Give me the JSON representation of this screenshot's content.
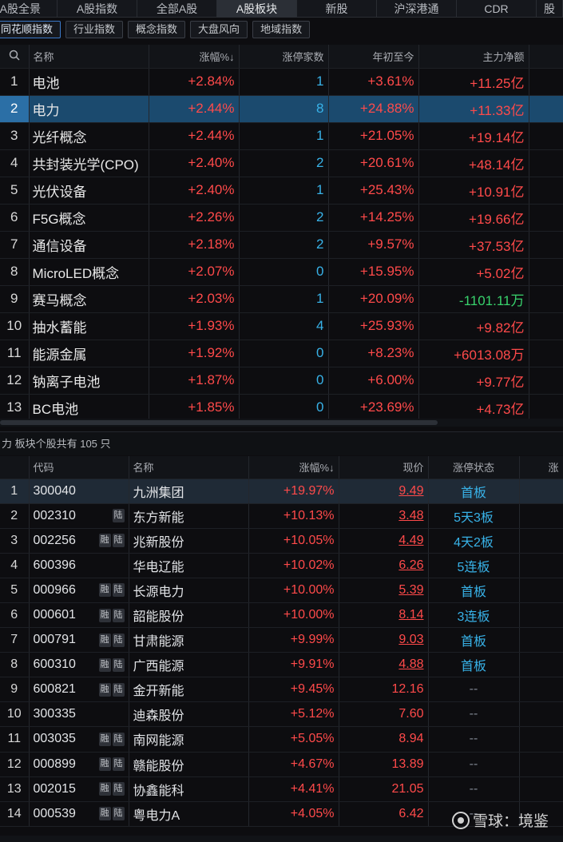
{
  "tabs": [
    "A股全景",
    "A股指数",
    "全部A股",
    "A股板块",
    "新股",
    "沪深港通",
    "CDR",
    "股"
  ],
  "active_tab": 3,
  "sub_indexes": [
    "同花顺指数",
    "行业指数",
    "概念指数",
    "大盘风向",
    "地域指数"
  ],
  "sector_table": {
    "headers": [
      "名称",
      "涨幅%↓",
      "涨停家数",
      "年初至今",
      "主力净额"
    ],
    "rows": [
      {
        "idx": "1",
        "name": "电池",
        "chg": "+2.84%",
        "limit": "1",
        "ytd": "+3.61%",
        "net": "+11.25亿"
      },
      {
        "idx": "2",
        "name": "电力",
        "chg": "+2.44%",
        "limit": "8",
        "ytd": "+24.88%",
        "net": "+11.33亿"
      },
      {
        "idx": "3",
        "name": "光纤概念",
        "chg": "+2.44%",
        "limit": "1",
        "ytd": "+21.05%",
        "net": "+19.14亿"
      },
      {
        "idx": "4",
        "name": "共封装光学(CPO)",
        "chg": "+2.40%",
        "limit": "2",
        "ytd": "+20.61%",
        "net": "+48.14亿"
      },
      {
        "idx": "5",
        "name": "光伏设备",
        "chg": "+2.40%",
        "limit": "1",
        "ytd": "+25.43%",
        "net": "+10.91亿"
      },
      {
        "idx": "6",
        "name": "F5G概念",
        "chg": "+2.26%",
        "limit": "2",
        "ytd": "+14.25%",
        "net": "+19.66亿"
      },
      {
        "idx": "7",
        "name": "通信设备",
        "chg": "+2.18%",
        "limit": "2",
        "ytd": "+9.57%",
        "net": "+37.53亿"
      },
      {
        "idx": "8",
        "name": "MicroLED概念",
        "chg": "+2.07%",
        "limit": "0",
        "ytd": "+15.95%",
        "net": "+5.02亿"
      },
      {
        "idx": "9",
        "name": "赛马概念",
        "chg": "+2.03%",
        "limit": "1",
        "ytd": "+20.09%",
        "net": "-1101.11万"
      },
      {
        "idx": "10",
        "name": "抽水蓄能",
        "chg": "+1.93%",
        "limit": "4",
        "ytd": "+25.93%",
        "net": "+9.82亿"
      },
      {
        "idx": "11",
        "name": "能源金属",
        "chg": "+1.92%",
        "limit": "0",
        "ytd": "+8.23%",
        "net": "+6013.08万"
      },
      {
        "idx": "12",
        "name": "钠离子电池",
        "chg": "+1.87%",
        "limit": "0",
        "ytd": "+6.00%",
        "net": "+9.77亿"
      },
      {
        "idx": "13",
        "name": "BC电池",
        "chg": "+1.85%",
        "limit": "0",
        "ytd": "+23.69%",
        "net": "+4.73亿"
      }
    ]
  },
  "section_title": "力 板块个股共有 105 只",
  "stock_table": {
    "headers": [
      "代码",
      "名称",
      "涨幅%↓",
      "现价",
      "涨停状态",
      "涨"
    ],
    "rows": [
      {
        "idx": "1",
        "code": "300040",
        "badges": [],
        "name": "九洲集团",
        "chg": "+19.97%",
        "price": "9.49",
        "status": "首板"
      },
      {
        "idx": "2",
        "code": "002310",
        "badges": [
          "陆"
        ],
        "name": "东方新能",
        "chg": "+10.13%",
        "price": "3.48",
        "status": "5天3板"
      },
      {
        "idx": "3",
        "code": "002256",
        "badges": [
          "融",
          "陆"
        ],
        "name": "兆新股份",
        "chg": "+10.05%",
        "price": "4.49",
        "status": "4天2板"
      },
      {
        "idx": "4",
        "code": "600396",
        "badges": [],
        "name": "华电辽能",
        "chg": "+10.02%",
        "price": "6.26",
        "status": "5连板"
      },
      {
        "idx": "5",
        "code": "000966",
        "badges": [
          "融",
          "陆"
        ],
        "name": "长源电力",
        "chg": "+10.00%",
        "price": "5.39",
        "status": "首板"
      },
      {
        "idx": "6",
        "code": "000601",
        "badges": [
          "融",
          "陆"
        ],
        "name": "韶能股份",
        "chg": "+10.00%",
        "price": "8.14",
        "status": "3连板"
      },
      {
        "idx": "7",
        "code": "000791",
        "badges": [
          "融",
          "陆"
        ],
        "name": "甘肃能源",
        "chg": "+9.99%",
        "price": "9.03",
        "status": "首板"
      },
      {
        "idx": "8",
        "code": "600310",
        "badges": [
          "融",
          "陆"
        ],
        "name": "广西能源",
        "chg": "+9.91%",
        "price": "4.88",
        "status": "首板"
      },
      {
        "idx": "9",
        "code": "600821",
        "badges": [
          "融",
          "陆"
        ],
        "name": "金开新能",
        "chg": "+9.45%",
        "price": "12.16",
        "status": "--"
      },
      {
        "idx": "10",
        "code": "300335",
        "badges": [],
        "name": "迪森股份",
        "chg": "+5.12%",
        "price": "7.60",
        "status": "--"
      },
      {
        "idx": "11",
        "code": "003035",
        "badges": [
          "融",
          "陆"
        ],
        "name": "南网能源",
        "chg": "+5.05%",
        "price": "8.94",
        "status": "--"
      },
      {
        "idx": "12",
        "code": "000899",
        "badges": [
          "融",
          "陆"
        ],
        "name": "赣能股份",
        "chg": "+4.67%",
        "price": "13.89",
        "status": "--"
      },
      {
        "idx": "13",
        "code": "002015",
        "badges": [
          "融",
          "陆"
        ],
        "name": "协鑫能科",
        "chg": "+4.41%",
        "price": "21.05",
        "status": "--"
      },
      {
        "idx": "14",
        "code": "000539",
        "badges": [
          "融",
          "陆"
        ],
        "name": "粤电力A",
        "chg": "+4.05%",
        "price": "6.42",
        "status": "--"
      }
    ]
  },
  "watermark": "雪球：境鉴",
  "colors": {
    "up": "#ff4a4a",
    "down": "#38d26c",
    "count": "#38b2e8",
    "selected": "#1b4a6e"
  }
}
